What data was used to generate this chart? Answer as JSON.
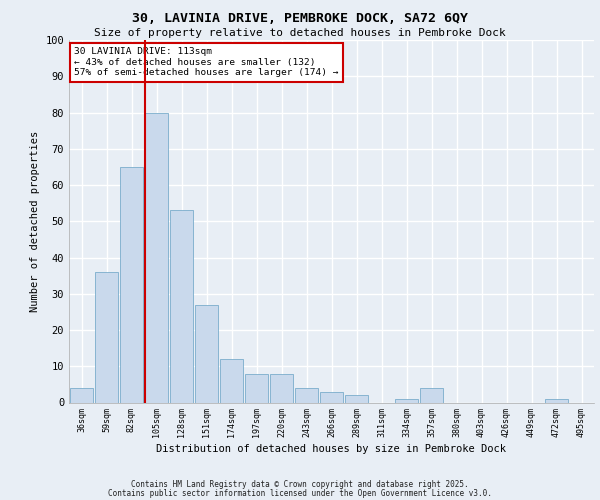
{
  "title1": "30, LAVINIA DRIVE, PEMBROKE DOCK, SA72 6QY",
  "title2": "Size of property relative to detached houses in Pembroke Dock",
  "xlabel": "Distribution of detached houses by size in Pembroke Dock",
  "ylabel": "Number of detached properties",
  "categories": [
    "36sqm",
    "59sqm",
    "82sqm",
    "105sqm",
    "128sqm",
    "151sqm",
    "174sqm",
    "197sqm",
    "220sqm",
    "243sqm",
    "266sqm",
    "289sqm",
    "311sqm",
    "334sqm",
    "357sqm",
    "380sqm",
    "403sqm",
    "426sqm",
    "449sqm",
    "472sqm",
    "495sqm"
  ],
  "values": [
    4,
    36,
    65,
    80,
    53,
    27,
    12,
    8,
    8,
    4,
    3,
    2,
    0,
    1,
    4,
    0,
    0,
    0,
    0,
    1,
    0
  ],
  "bar_color": "#c9d9ec",
  "bar_edge_color": "#7aadcc",
  "vline_color": "#cc0000",
  "vline_x_index": 3,
  "annotation_text": "30 LAVINIA DRIVE: 113sqm\n← 43% of detached houses are smaller (132)\n57% of semi-detached houses are larger (174) →",
  "annotation_box_color": "white",
  "annotation_box_edge": "#cc0000",
  "ylim": [
    0,
    100
  ],
  "yticks": [
    0,
    10,
    20,
    30,
    40,
    50,
    60,
    70,
    80,
    90,
    100
  ],
  "footer1": "Contains HM Land Registry data © Crown copyright and database right 2025.",
  "footer2": "Contains public sector information licensed under the Open Government Licence v3.0.",
  "bg_color": "#e8eef5",
  "grid_color": "#ffffff"
}
